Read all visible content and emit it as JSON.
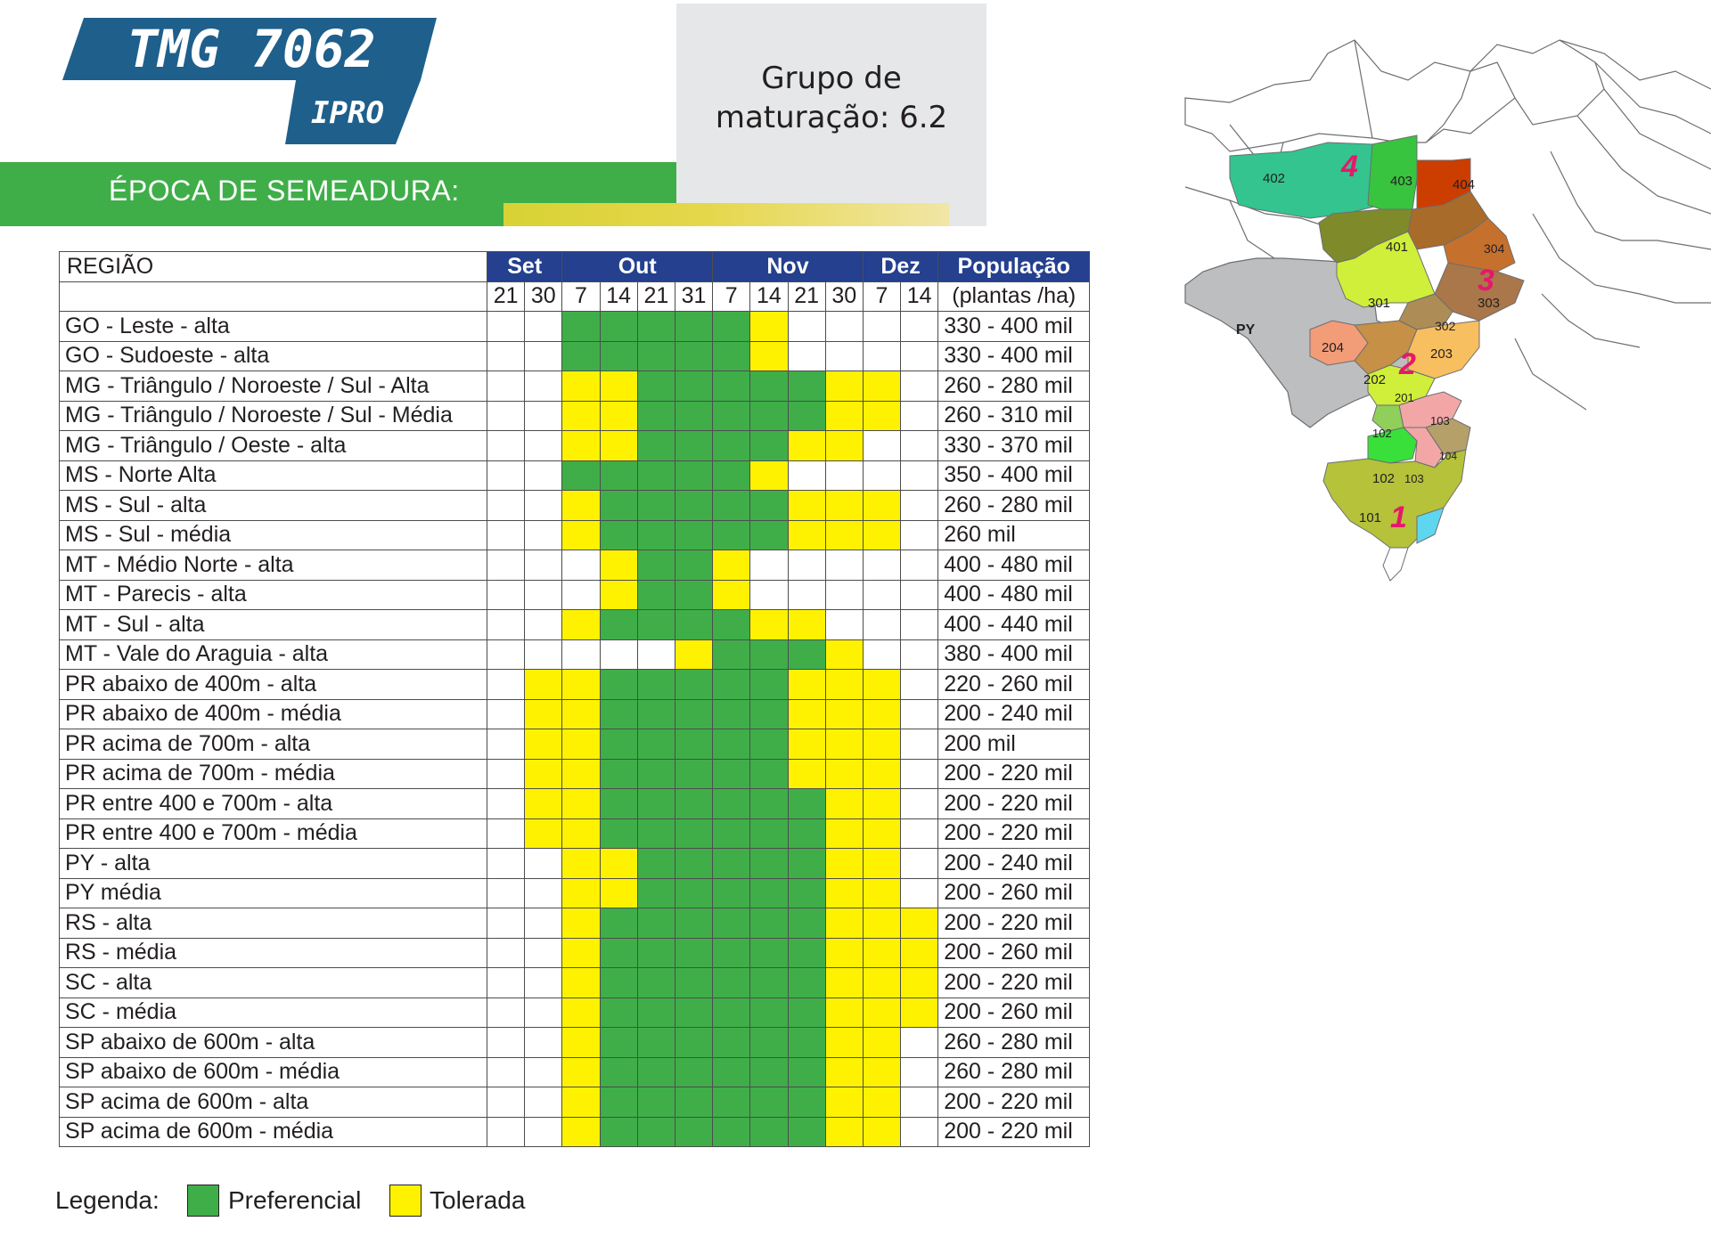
{
  "header": {
    "product_name": "TMG 7062",
    "product_variant": "IPRO",
    "maturity_line1": "Grupo de",
    "maturity_line2": "maturação: 6.2",
    "section_title": "ÉPOCA DE SEMEADURA:"
  },
  "table": {
    "region_header": "REGIÃO",
    "months": [
      {
        "label": "Set",
        "span": 2
      },
      {
        "label": "Out",
        "span": 4
      },
      {
        "label": "Nov",
        "span": 4
      },
      {
        "label": "Dez",
        "span": 2
      }
    ],
    "days": [
      "21",
      "30",
      "7",
      "14",
      "21",
      "31",
      "7",
      "14",
      "21",
      "30",
      "7",
      "14"
    ],
    "population_header": "População",
    "population_subheader": "(plantas /ha)",
    "rows": [
      {
        "region": "GO - Leste - alta",
        "cells": "EEPPPPPTEEEE",
        "population": "330 - 400 mil"
      },
      {
        "region": "GO - Sudoeste - alta",
        "cells": "EEPPPPPTEEEE",
        "population": "330 - 400 mil"
      },
      {
        "region": "MG - Triângulo / Noroeste / Sul - Alta",
        "cells": "EETTPPPPPTTE",
        "population": "260 - 280 mil"
      },
      {
        "region": "MG - Triângulo / Noroeste / Sul - Média",
        "cells": "EETTPPPPPTTE",
        "population": "260 - 310 mil"
      },
      {
        "region": "MG - Triângulo / Oeste - alta",
        "cells": "EETTPPPPTTEE",
        "population": "330 - 370 mil"
      },
      {
        "region": "MS - Norte Alta",
        "cells": "EEPPPPPTEEEE",
        "population": "350 - 400 mil"
      },
      {
        "region": "MS - Sul - alta",
        "cells": "EETPPPPPTTTE",
        "population": "260 - 280 mil"
      },
      {
        "region": "MS - Sul - média",
        "cells": "EETPPPPPTTTE",
        "population": "260 mil"
      },
      {
        "region": "MT - Médio Norte - alta",
        "cells": "EEETPPTEEEEE",
        "population": "400 - 480 mil"
      },
      {
        "region": "MT - Parecis - alta",
        "cells": "EEETPPTEEEEE",
        "population": "400 - 480 mil"
      },
      {
        "region": "MT - Sul - alta",
        "cells": "EETPPPPTTEEE",
        "population": "400 - 440 mil"
      },
      {
        "region": "MT - Vale do Araguia - alta",
        "cells": "EEEEETPPPTEE",
        "population": "380 - 400 mil"
      },
      {
        "region": "PR abaixo de 400m - alta",
        "cells": "ETTPPPPPTTTE",
        "population": "220 - 260 mil"
      },
      {
        "region": "PR abaixo de 400m - média",
        "cells": "ETTPPPPPTTTE",
        "population": "200 - 240 mil"
      },
      {
        "region": "PR acima de 700m - alta",
        "cells": "ETTPPPPPTTTE",
        "population": "200 mil"
      },
      {
        "region": "PR acima de 700m - média",
        "cells": "ETTPPPPPTTTE",
        "population": "200 - 220 mil"
      },
      {
        "region": "PR entre 400 e 700m - alta",
        "cells": "ETTPPPPPPTTE",
        "population": "200 - 220 mil"
      },
      {
        "region": "PR entre 400 e 700m - média",
        "cells": "ETTPPPPPPTTE",
        "population": "200 - 220 mil"
      },
      {
        "region": "PY - alta",
        "cells": "EETTPPPPPTTE",
        "population": "200 - 240 mil"
      },
      {
        "region": "PY média",
        "cells": "EETTPPPPPTTE",
        "population": "200 - 260 mil"
      },
      {
        "region": "RS - alta",
        "cells": "EETPPPPPPTTT",
        "population": "200 - 220 mil"
      },
      {
        "region": "RS - média",
        "cells": "EETPPPPPPTTT",
        "population": "200 - 260 mil"
      },
      {
        "region": "SC - alta",
        "cells": "EETPPPPPPTTT",
        "population": "200 - 220 mil"
      },
      {
        "region": "SC - média",
        "cells": "EETPPPPPPTTT",
        "population": "200 - 260 mil"
      },
      {
        "region": "SP abaixo de 600m - alta",
        "cells": "EETPPPPPPTTE",
        "population": "260 - 280 mil"
      },
      {
        "region": "SP abaixo de 600m - média",
        "cells": "EETPPPPPPTTE",
        "population": "260 - 280 mil"
      },
      {
        "region": "SP acima de 600m - alta",
        "cells": "EETPPPPPPTTE",
        "population": "200 - 220 mil"
      },
      {
        "region": "SP acima de 600m - média",
        "cells": "EETPPPPPPTTE",
        "population": "200 - 220 mil"
      }
    ]
  },
  "legend": {
    "label": "Legenda:",
    "preferencial": "Preferencial",
    "tolerada": "Tolerada"
  },
  "colors": {
    "preferencial": "#3fae49",
    "tolerada": "#fff200",
    "month_header": "#24408e",
    "logo_blue": "#1f5f8b"
  },
  "map": {
    "region_labels": [
      "402",
      "403",
      "404",
      "401",
      "304",
      "301",
      "303",
      "302",
      "204",
      "203",
      "202",
      "201",
      "103",
      "102",
      "104",
      "102",
      "103",
      "101"
    ],
    "macro_labels": [
      "4",
      "3",
      "2",
      "1"
    ],
    "country_label": "PY"
  }
}
